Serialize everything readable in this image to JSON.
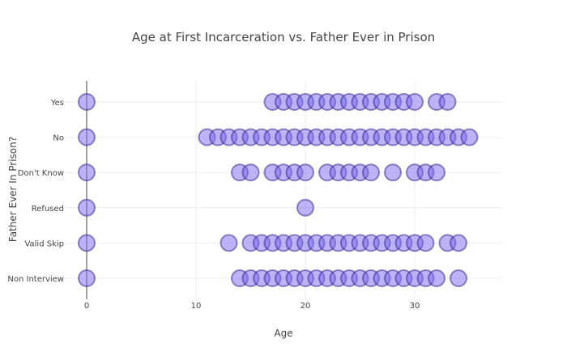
{
  "chart_data": {
    "type": "scatter",
    "title": "Age at First Incarceration vs. Father Ever in Prison",
    "xlabel": "Age",
    "ylabel": "Father Ever In Prison?",
    "xlim": [
      -2,
      38
    ],
    "x_ticks": [
      0,
      10,
      20,
      30
    ],
    "categories": [
      "Yes",
      "No",
      "Don't Know",
      "Refused",
      "Valid Skip",
      "Non Interview"
    ],
    "grid": true,
    "legend": "none",
    "marker_color": "#7b68ee",
    "marker_line_color": "#2d1b8a",
    "series": [
      {
        "category": "Yes",
        "x": [
          0,
          17,
          18,
          19,
          20,
          21,
          22,
          23,
          24,
          25,
          26,
          27,
          28,
          29,
          30,
          32,
          33
        ]
      },
      {
        "category": "No",
        "x": [
          0,
          11,
          12,
          13,
          14,
          15,
          16,
          17,
          18,
          19,
          20,
          21,
          22,
          23,
          24,
          25,
          26,
          27,
          28,
          29,
          30,
          31,
          32,
          33,
          34,
          35
        ]
      },
      {
        "category": "Don't Know",
        "x": [
          0,
          14,
          15,
          17,
          18,
          19,
          20,
          22,
          23,
          24,
          25,
          26,
          28,
          30,
          31,
          32
        ]
      },
      {
        "category": "Refused",
        "x": [
          0,
          20
        ]
      },
      {
        "category": "Valid Skip",
        "x": [
          0,
          13,
          15,
          16,
          17,
          18,
          19,
          20,
          21,
          22,
          23,
          24,
          25,
          26,
          27,
          28,
          29,
          30,
          31,
          33,
          34
        ]
      },
      {
        "category": "Non Interview",
        "x": [
          0,
          14,
          15,
          16,
          17,
          18,
          19,
          20,
          21,
          22,
          23,
          24,
          25,
          26,
          27,
          28,
          29,
          30,
          31,
          32,
          34
        ]
      }
    ]
  }
}
